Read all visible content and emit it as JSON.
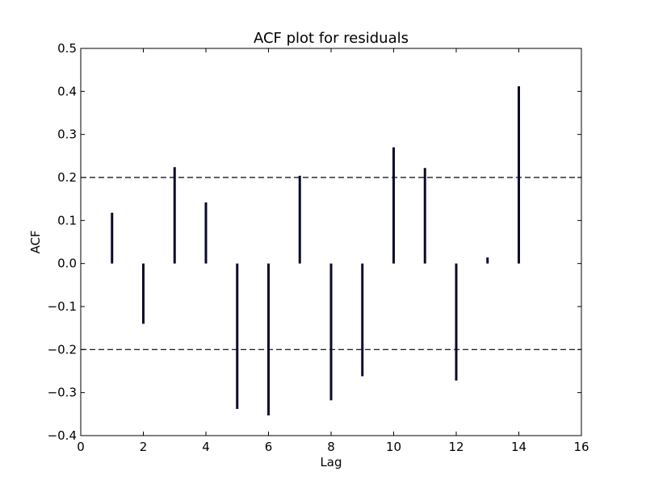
{
  "chart_data": {
    "type": "bar",
    "title": "ACF plot for residuals",
    "xlabel": "Lag",
    "ylabel": "ACF",
    "xlim": [
      0,
      16
    ],
    "ylim": [
      -0.4,
      0.5
    ],
    "xticks": [
      "0",
      "2",
      "4",
      "6",
      "8",
      "10",
      "12",
      "14",
      "16"
    ],
    "yticks": [
      "−0.4",
      "−0.3",
      "−0.2",
      "−0.1",
      "0.0",
      "0.1",
      "0.2",
      "0.3",
      "0.4",
      "0.5"
    ],
    "xtick_values": [
      0,
      2,
      4,
      6,
      8,
      10,
      12,
      14,
      16
    ],
    "ytick_values": [
      -0.4,
      -0.3,
      -0.2,
      -0.1,
      0.0,
      0.1,
      0.2,
      0.3,
      0.4,
      0.5
    ],
    "x": [
      1,
      2,
      3,
      4,
      5,
      6,
      7,
      8,
      9,
      10,
      11,
      12,
      13,
      14
    ],
    "values": [
      0.118,
      -0.14,
      0.224,
      0.142,
      -0.338,
      -0.353,
      0.204,
      -0.318,
      -0.262,
      0.27,
      0.222,
      -0.272,
      0.014,
      0.412
    ],
    "confidence_bounds": [
      0.2,
      -0.2
    ],
    "bar_color": "#0a0a2e",
    "bound_color": "#000000",
    "grid": false
  }
}
